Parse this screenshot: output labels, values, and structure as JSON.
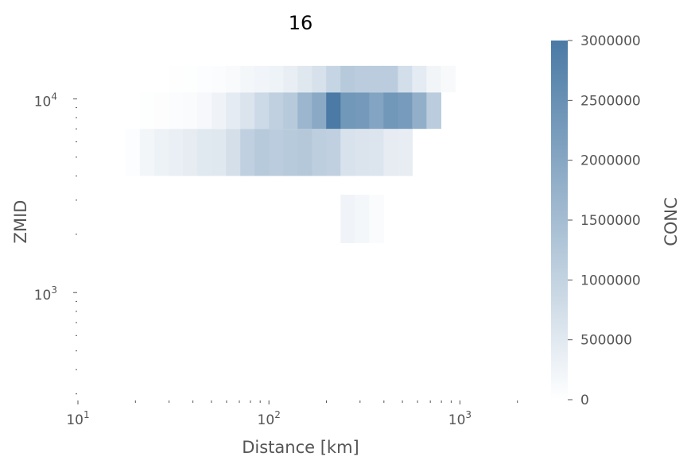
{
  "chart_data": {
    "type": "heatmap",
    "title": "16",
    "xlabel": "Distance [km]",
    "ylabel": "ZMID",
    "colorbar_label": "CONC",
    "x_scale": "log",
    "y_scale": "log",
    "xlim": [
      10,
      3000
    ],
    "ylim": [
      280,
      20000
    ],
    "x_ticks": [
      {
        "value": 10,
        "base": "10",
        "exp": "1"
      },
      {
        "value": 100,
        "base": "10",
        "exp": "2"
      },
      {
        "value": 1000,
        "base": "10",
        "exp": "3"
      }
    ],
    "y_ticks": [
      {
        "value": 1000,
        "base": "10",
        "exp": "3"
      },
      {
        "value": 10000,
        "base": "10",
        "exp": "4"
      }
    ],
    "colorbar": {
      "min": 0,
      "max": 3000000,
      "ticks": [
        "0",
        "500000",
        "1000000",
        "1500000",
        "2000000",
        "2500000",
        "3000000"
      ],
      "color_low": "#ffffff",
      "color_high": "#4a7aa5"
    },
    "x_bin_edges": [
      17.8,
      21.1,
      25.1,
      29.9,
      35.5,
      42.2,
      50.1,
      59.6,
      70.8,
      84.1,
      100,
      118.9,
      141.3,
      167.9,
      199.5,
      237.1,
      281.8,
      334.9,
      398.1,
      473.2,
      562.3,
      668.3,
      794.3,
      944.1,
      1122,
      1333.5
    ],
    "rows": [
      {
        "z_range": [
          1800,
          3200
        ],
        "cells": [
          {
            "i": 15,
            "v": 250000
          },
          {
            "i": 16,
            "v": 180000
          },
          {
            "i": 17,
            "v": 90000
          }
        ]
      },
      {
        "z_range": [
          4000,
          7000
        ],
        "cells": [
          {
            "i": 0,
            "v": 50000
          },
          {
            "i": 1,
            "v": 200000
          },
          {
            "i": 2,
            "v": 300000
          },
          {
            "i": 3,
            "v": 350000
          },
          {
            "i": 4,
            "v": 420000
          },
          {
            "i": 5,
            "v": 500000
          },
          {
            "i": 6,
            "v": 520000
          },
          {
            "i": 7,
            "v": 720000
          },
          {
            "i": 8,
            "v": 1050000
          },
          {
            "i": 9,
            "v": 1200000
          },
          {
            "i": 10,
            "v": 1150000
          },
          {
            "i": 11,
            "v": 1200000
          },
          {
            "i": 12,
            "v": 1250000
          },
          {
            "i": 13,
            "v": 1100000
          },
          {
            "i": 14,
            "v": 1050000
          },
          {
            "i": 15,
            "v": 650000
          },
          {
            "i": 16,
            "v": 600000
          },
          {
            "i": 17,
            "v": 580000
          },
          {
            "i": 18,
            "v": 420000
          },
          {
            "i": 19,
            "v": 400000
          }
        ]
      },
      {
        "z_range": [
          7000,
          10800
        ],
        "cells": [
          {
            "i": 1,
            "v": 30000
          },
          {
            "i": 2,
            "v": 40000
          },
          {
            "i": 3,
            "v": 60000
          },
          {
            "i": 4,
            "v": 90000
          },
          {
            "i": 5,
            "v": 150000
          },
          {
            "i": 6,
            "v": 260000
          },
          {
            "i": 7,
            "v": 450000
          },
          {
            "i": 8,
            "v": 600000
          },
          {
            "i": 9,
            "v": 850000
          },
          {
            "i": 10,
            "v": 1050000
          },
          {
            "i": 11,
            "v": 1200000
          },
          {
            "i": 12,
            "v": 1650000
          },
          {
            "i": 13,
            "v": 1950000
          },
          {
            "i": 14,
            "v": 3000000
          },
          {
            "i": 15,
            "v": 2350000
          },
          {
            "i": 16,
            "v": 2300000
          },
          {
            "i": 17,
            "v": 2050000
          },
          {
            "i": 18,
            "v": 2350000
          },
          {
            "i": 19,
            "v": 2250000
          },
          {
            "i": 20,
            "v": 1800000
          },
          {
            "i": 21,
            "v": 1150000
          }
        ]
      },
      {
        "z_range": [
          10800,
          14800
        ],
        "cells": [
          {
            "i": 3,
            "v": 20000
          },
          {
            "i": 4,
            "v": 30000
          },
          {
            "i": 5,
            "v": 50000
          },
          {
            "i": 6,
            "v": 70000
          },
          {
            "i": 7,
            "v": 120000
          },
          {
            "i": 8,
            "v": 180000
          },
          {
            "i": 9,
            "v": 240000
          },
          {
            "i": 10,
            "v": 280000
          },
          {
            "i": 11,
            "v": 380000
          },
          {
            "i": 12,
            "v": 520000
          },
          {
            "i": 13,
            "v": 680000
          },
          {
            "i": 14,
            "v": 950000
          },
          {
            "i": 15,
            "v": 1200000
          },
          {
            "i": 16,
            "v": 1150000
          },
          {
            "i": 17,
            "v": 1150000
          },
          {
            "i": 18,
            "v": 1150000
          },
          {
            "i": 19,
            "v": 750000
          },
          {
            "i": 20,
            "v": 450000
          },
          {
            "i": 21,
            "v": 220000
          },
          {
            "i": 22,
            "v": 130000
          }
        ]
      }
    ]
  }
}
